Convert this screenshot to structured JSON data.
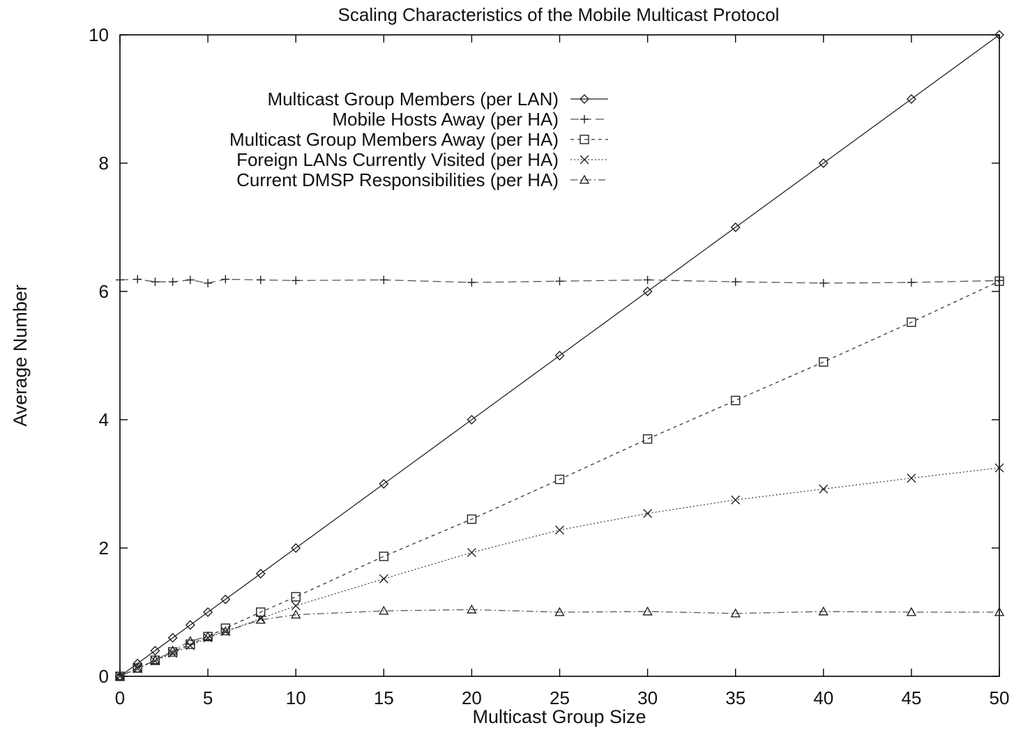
{
  "chart_data": {
    "type": "line",
    "title": "Scaling Characteristics of the Mobile Multicast Protocol",
    "xlabel": "Multicast Group Size",
    "ylabel": "Average Number",
    "xlim": [
      0,
      50
    ],
    "ylim": [
      0,
      10
    ],
    "x_ticks": [
      "0",
      "5",
      "10",
      "15",
      "20",
      "25",
      "30",
      "35",
      "40",
      "45",
      "50"
    ],
    "y_ticks": [
      "0",
      "2",
      "4",
      "6",
      "8",
      "10"
    ],
    "grid": false,
    "legend_position": "top-left",
    "series": [
      {
        "name": "Multicast Group Members (per LAN)",
        "marker": "diamond",
        "line": "solid",
        "x": [
          0,
          1,
          2,
          3,
          4,
          5,
          6,
          8,
          10,
          15,
          20,
          25,
          30,
          35,
          40,
          45,
          50
        ],
        "y": [
          0,
          0.2,
          0.4,
          0.6,
          0.8,
          1.0,
          1.2,
          1.6,
          2.0,
          3.0,
          4.0,
          5.0,
          6.0,
          7.0,
          8.0,
          9.0,
          10.0
        ]
      },
      {
        "name": "Mobile Hosts Away (per HA)",
        "marker": "plus",
        "line": "dashed",
        "x": [
          0,
          1,
          2,
          3,
          4,
          5,
          6,
          8,
          10,
          15,
          20,
          25,
          30,
          35,
          40,
          45,
          50
        ],
        "y": [
          6.18,
          6.19,
          6.15,
          6.15,
          6.18,
          6.13,
          6.19,
          6.18,
          6.17,
          6.18,
          6.14,
          6.16,
          6.18,
          6.15,
          6.13,
          6.14,
          6.17
        ]
      },
      {
        "name": "Multicast Group Members Away (per HA)",
        "marker": "square",
        "line": "short-dash",
        "x": [
          0,
          1,
          2,
          3,
          4,
          5,
          6,
          8,
          10,
          15,
          20,
          25,
          30,
          35,
          40,
          45,
          50
        ],
        "y": [
          0,
          0.13,
          0.25,
          0.38,
          0.5,
          0.62,
          0.75,
          1.0,
          1.24,
          1.87,
          2.45,
          3.07,
          3.7,
          4.3,
          4.9,
          5.52,
          6.16
        ]
      },
      {
        "name": "Foreign LANs Currently Visited (per HA)",
        "marker": "cross",
        "line": "dotted",
        "x": [
          0,
          1,
          2,
          3,
          4,
          5,
          6,
          8,
          10,
          15,
          20,
          25,
          30,
          35,
          40,
          45,
          50
        ],
        "y": [
          0,
          0.12,
          0.24,
          0.36,
          0.48,
          0.6,
          0.7,
          0.9,
          1.1,
          1.52,
          1.93,
          2.28,
          2.54,
          2.75,
          2.92,
          3.09,
          3.25
        ]
      },
      {
        "name": "Current DMSP Responsibilities (per HA)",
        "marker": "triangle",
        "line": "dash-dot",
        "x": [
          0,
          1,
          2,
          3,
          4,
          5,
          6,
          8,
          10,
          15,
          20,
          25,
          30,
          35,
          40,
          45,
          50
        ],
        "y": [
          0,
          0.12,
          0.25,
          0.4,
          0.55,
          0.62,
          0.7,
          0.88,
          0.96,
          1.02,
          1.04,
          1.0,
          1.01,
          0.98,
          1.01,
          1.0,
          1.0
        ]
      }
    ]
  }
}
